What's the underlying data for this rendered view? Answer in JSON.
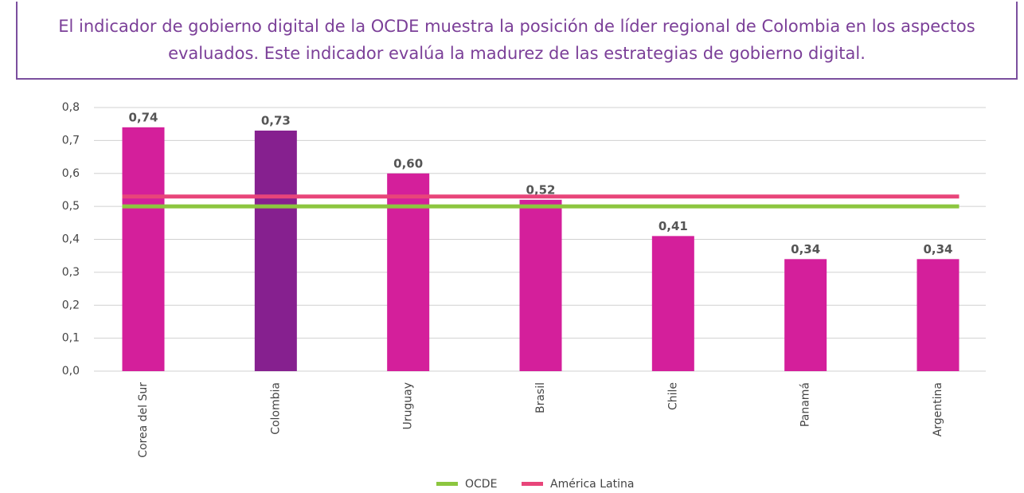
{
  "chart_data": {
    "type": "bar",
    "title": "El indicador de gobierno digital de la OCDE muestra la posición de líder regional de Colombia en los aspectos evaluados. Este indicador evalúa la madurez de las estrategias de gobierno digital.",
    "categories": [
      "Corea del Sur",
      "Colombia",
      "Uruguay",
      "Brasil",
      "Chile",
      "Panamá",
      "Argentina"
    ],
    "values": [
      0.74,
      0.73,
      0.6,
      0.52,
      0.41,
      0.34,
      0.34
    ],
    "value_labels": [
      "0,74",
      "0,73",
      "0,60",
      "0,52",
      "0,41",
      "0,34",
      "0,34"
    ],
    "colors": [
      "#d41f9b",
      "#86208f",
      "#d41f9b",
      "#d41f9b",
      "#d41f9b",
      "#d41f9b",
      "#d41f9b"
    ],
    "reference_lines": [
      {
        "name": "OCDE",
        "color": "#8cc63f",
        "value": 0.5
      },
      {
        "name": "América Latina",
        "color": "#e8457a",
        "value": 0.53
      }
    ],
    "ylim": [
      0,
      0.8
    ],
    "yticks": [
      {
        "value": 0,
        "label": "0,0"
      },
      {
        "value": 0.1,
        "label": "0,1"
      },
      {
        "value": 0.2,
        "label": "0,2"
      },
      {
        "value": 0.3,
        "label": "0,3"
      },
      {
        "value": 0.4,
        "label": "0,4"
      },
      {
        "value": 0.5,
        "label": "0,5"
      },
      {
        "value": 0.6,
        "label": "0,6"
      },
      {
        "value": 0.7,
        "label": "0,7"
      },
      {
        "value": 0.8,
        "label": "0,8"
      }
    ],
    "grid": true
  }
}
